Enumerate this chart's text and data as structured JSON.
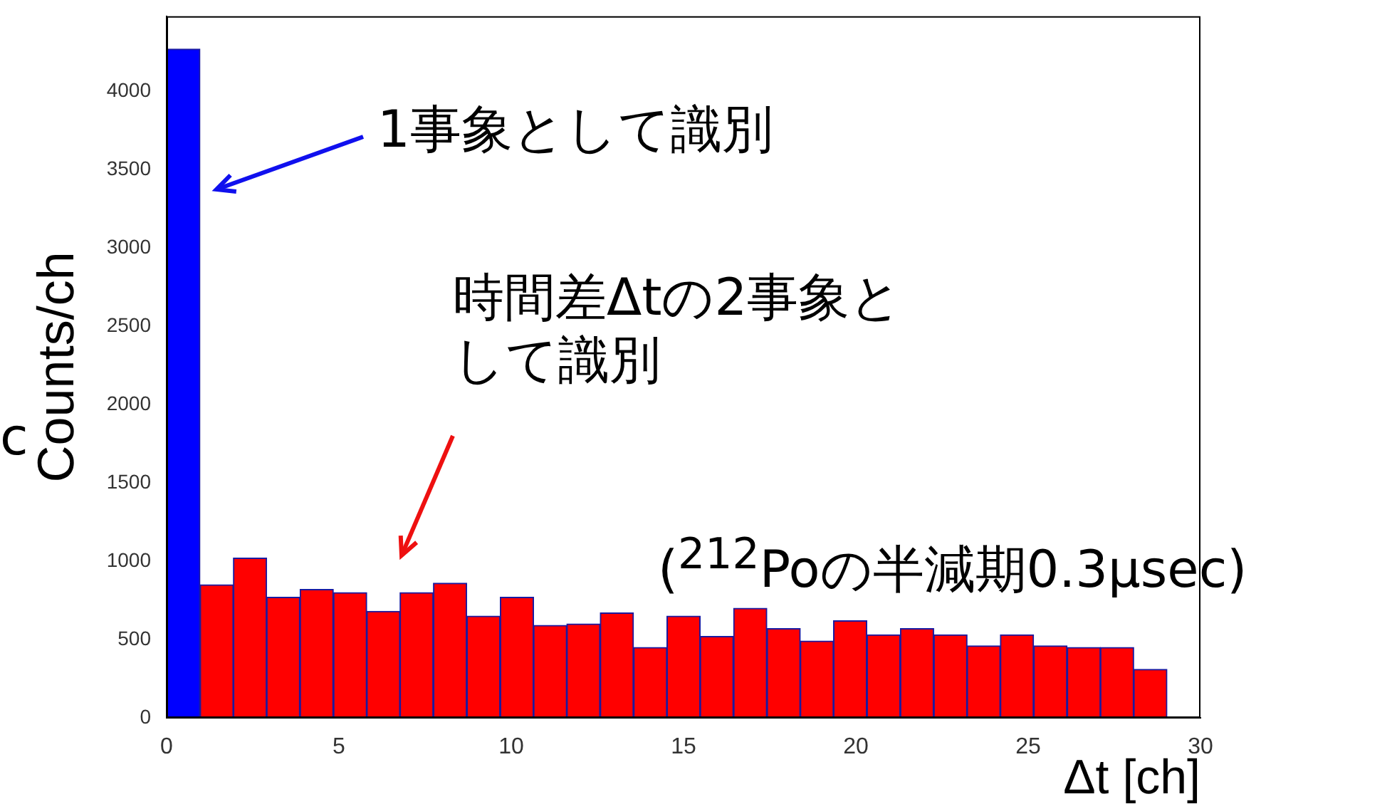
{
  "chart_data": {
    "type": "histogram",
    "bins": [
      0,
      0.97,
      1.94,
      2.9,
      3.87,
      4.84,
      5.81,
      6.77,
      7.74,
      8.71,
      9.68,
      10.65,
      11.61,
      12.58,
      13.55,
      14.52,
      15.48,
      16.45,
      17.42,
      18.39,
      19.35,
      20.32,
      21.29,
      22.26,
      23.23,
      24.19,
      25.16,
      26.13,
      27.1,
      28.06,
      29.03,
      30
    ],
    "values": [
      4270,
      850,
      1020,
      770,
      820,
      800,
      680,
      800,
      860,
      650,
      770,
      590,
      600,
      670,
      450,
      650,
      520,
      700,
      570,
      490,
      620,
      530,
      570,
      530,
      460,
      530,
      460,
      450,
      450,
      310,
      0
    ],
    "colors": [
      "#0000ff",
      "#ff0000",
      "#ff0000",
      "#ff0000",
      "#ff0000",
      "#ff0000",
      "#ff0000",
      "#ff0000",
      "#ff0000",
      "#ff0000",
      "#ff0000",
      "#ff0000",
      "#ff0000",
      "#ff0000",
      "#ff0000",
      "#ff0000",
      "#ff0000",
      "#ff0000",
      "#ff0000",
      "#ff0000",
      "#ff0000",
      "#ff0000",
      "#ff0000",
      "#ff0000",
      "#ff0000",
      "#ff0000",
      "#ff0000",
      "#ff0000",
      "#ff0000",
      "#ff0000",
      "#ff0000"
    ],
    "xlabel": "Δt [ch]",
    "ylabel": "Counts/ch",
    "xlim": [
      0,
      30
    ],
    "xticks": [
      0,
      5,
      10,
      15,
      20,
      25,
      30
    ],
    "ylim": [
      0,
      4480
    ],
    "yticks": [
      0,
      500,
      1000,
      1500,
      2000,
      2500,
      3000,
      3500,
      4000
    ],
    "grid": false,
    "legend": false,
    "annotations": [
      "1事象として識別",
      "時間差Δtの2事象として識別",
      "($^{212}$Poの半減期0.3μsec)",
      "c"
    ]
  }
}
